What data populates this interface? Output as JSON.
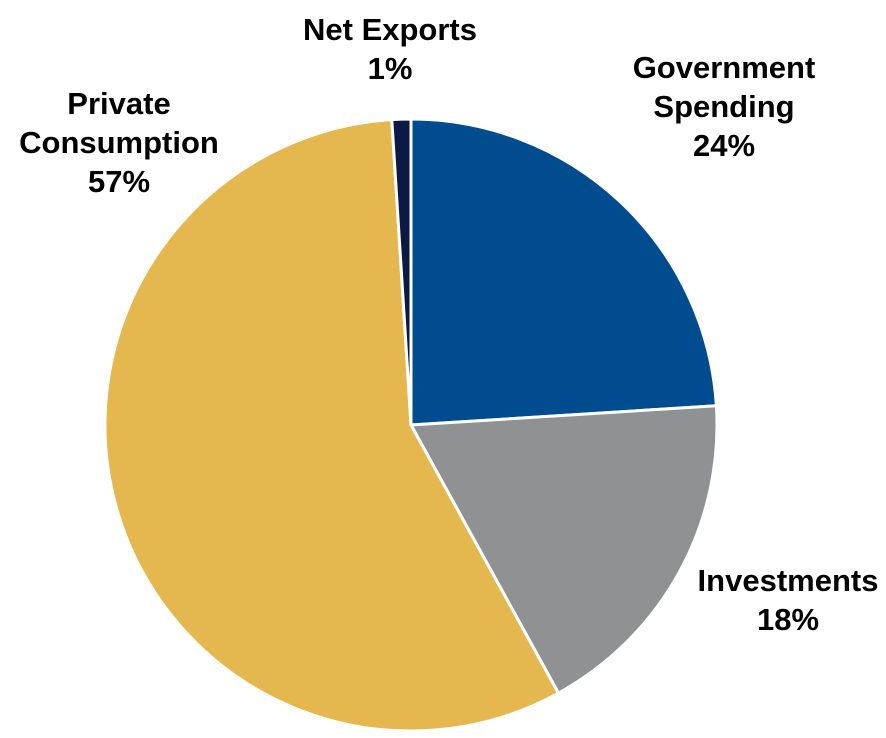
{
  "chart_data": {
    "type": "pie",
    "title": "",
    "slices": [
      {
        "label": [
          "Government",
          "Spending"
        ],
        "value_label": "24%",
        "value": 24,
        "color": "#004C8F"
      },
      {
        "label": [
          "Investments"
        ],
        "value_label": "18%",
        "value": 18,
        "color": "#8F9193"
      },
      {
        "label": [
          "Private",
          "Consumption"
        ],
        "value_label": "57%",
        "value": 57,
        "color": "#E4B84E"
      },
      {
        "label": [
          "Net Exports"
        ],
        "value_label": "1%",
        "value": 1,
        "color": "#0B1A45"
      }
    ]
  }
}
